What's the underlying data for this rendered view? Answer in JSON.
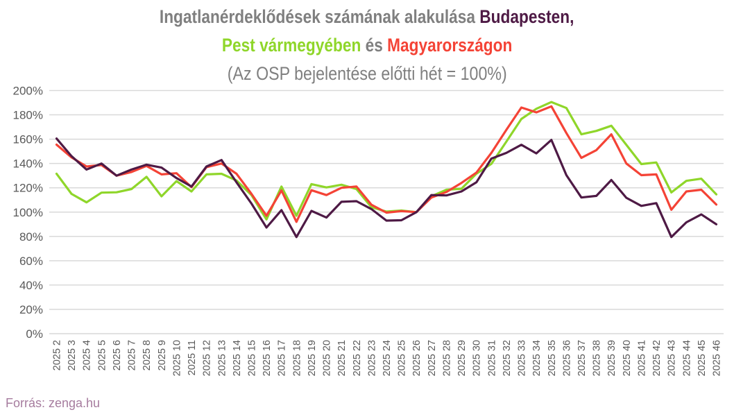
{
  "title": {
    "line1_part1": "Ingatlanérdeklődések számának alakulása ",
    "line1_part2": "Budapesten,",
    "line2_part1": "Pest vármegyében",
    "line2_part2": " és ",
    "line2_part3": "Magyarországon",
    "line3": "(Az OSP bejelentése előtti hét = 100%)"
  },
  "source": "Forrás: zenga.hu",
  "colors": {
    "budapest": "#4e1a45",
    "pest": "#8fd62a",
    "magyarorszag": "#f44336",
    "title_grey": "#7f7f7f",
    "grid": "#d9d9d9",
    "axis_text": "#595959",
    "source": "#a67c9e"
  },
  "chart_data": {
    "type": "line",
    "title": "Ingatlanérdeklődések számának alakulása Budapesten, Pest vármegyében és Magyarországon (Az OSP bejelentése előtti hét = 100%)",
    "xlabel": "",
    "ylabel": "",
    "ylim": [
      0,
      200
    ],
    "yticks": [
      "0%",
      "20%",
      "40%",
      "60%",
      "80%",
      "100%",
      "120%",
      "140%",
      "160%",
      "180%",
      "200%"
    ],
    "grid": true,
    "legend": "none (encoded in colored title words)",
    "categories": [
      "2025 2",
      "2025 3",
      "2025 4",
      "2025 5",
      "2025 6",
      "2025 7",
      "2025 8",
      "2025 9",
      "2025 10",
      "2025 11",
      "2025 12",
      "2025 13",
      "2025 14",
      "2025 15",
      "2025 16",
      "2025 17",
      "2025 18",
      "2025 19",
      "2025 20",
      "2025 21",
      "2025 22",
      "2025 23",
      "2025 24",
      "2025 25",
      "2025 26",
      "2025 27",
      "2025 28",
      "2025 29",
      "2025 30",
      "2025 31",
      "2025 32",
      "2025 33",
      "2025 34",
      "2025 35",
      "2025 36",
      "2025 37",
      "2025 38",
      "2025 39",
      "2025 40",
      "2025 41",
      "2025 42",
      "2025 43",
      "2025 44",
      "2025 45",
      "2025 46"
    ],
    "series": [
      {
        "name": "Budapest",
        "color": "#4e1a45",
        "values": [
          160.5,
          146,
          135,
          140,
          130,
          135,
          139,
          136.6,
          128,
          121,
          137.5,
          142.8,
          124.5,
          107,
          87.3,
          101.6,
          79.5,
          101,
          95.5,
          108.5,
          109,
          102.5,
          93,
          93.3,
          100,
          114,
          113.7,
          117,
          124.5,
          144,
          148.7,
          155.4,
          148.3,
          159.4,
          130.4,
          112,
          113.3,
          126.4,
          111.8,
          105.1,
          107.4,
          79.5,
          91.6,
          98.1,
          90
        ]
      },
      {
        "name": "Pest vármegye",
        "color": "#8fd62a",
        "values": [
          131.6,
          115,
          108,
          116,
          116.3,
          119,
          129,
          113,
          125.5,
          117,
          131,
          131.5,
          126,
          114,
          94,
          121,
          97,
          123,
          120.3,
          122.5,
          119,
          104,
          100.4,
          101.3,
          100,
          113,
          118.4,
          119.2,
          131.6,
          139.7,
          158,
          176.6,
          185,
          190.5,
          185.6,
          164,
          166.8,
          171,
          155.4,
          139.5,
          140.8,
          116.2,
          125.7,
          127.5,
          114.6
        ]
      },
      {
        "name": "Magyarország",
        "color": "#f44336",
        "values": [
          155.5,
          145,
          137.5,
          138.7,
          130,
          133,
          138,
          131,
          132,
          120.5,
          137,
          140,
          131.5,
          115,
          97,
          117.8,
          92,
          118,
          114,
          120,
          121,
          106,
          99.6,
          100.8,
          100,
          112,
          116.5,
          124,
          132.5,
          148.7,
          167.7,
          186,
          182,
          187,
          165,
          144.6,
          151,
          164,
          140,
          130.4,
          131,
          101.9,
          117,
          118.4,
          106.2
        ]
      }
    ]
  }
}
